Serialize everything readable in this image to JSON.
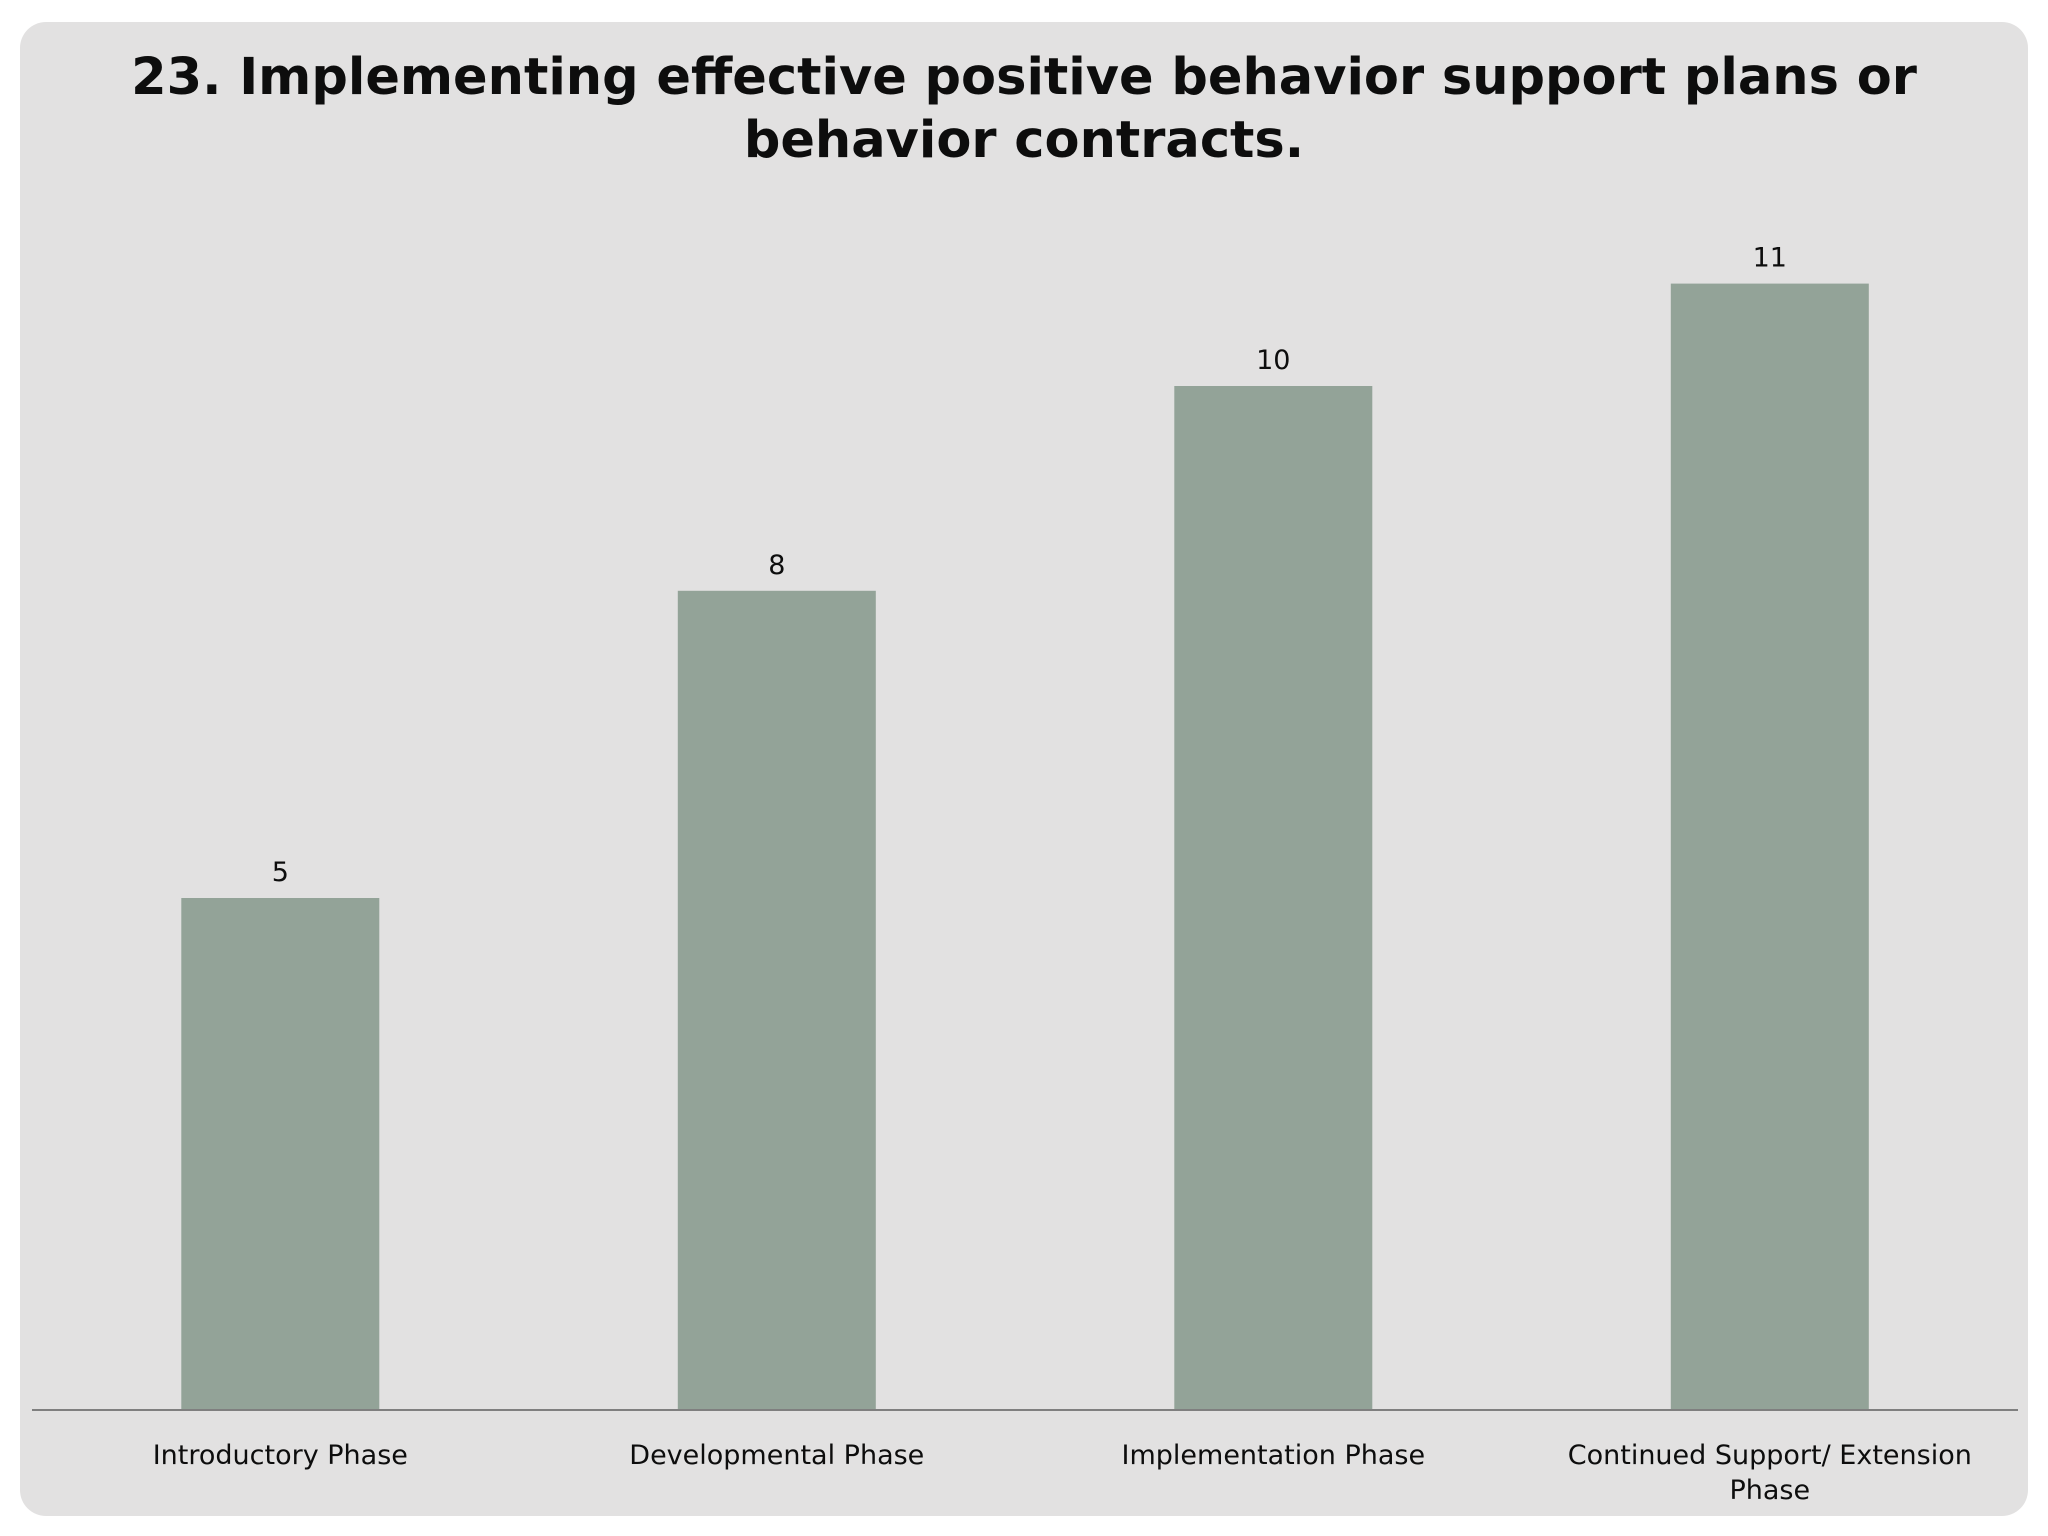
{
  "chart_data": {
    "type": "bar",
    "title_lines": [
      "23. Implementing effective positive behavior support plans or",
      "behavior contracts."
    ],
    "categories": [
      [
        "Introductory Phase"
      ],
      [
        "Developmental Phase"
      ],
      [
        "Implementation Phase"
      ],
      [
        "Continued Support/ Extension",
        "Phase"
      ]
    ],
    "values": [
      5,
      8,
      10,
      11
    ],
    "data_labels": [
      "5",
      "8",
      "10",
      "11"
    ],
    "xlabel": "",
    "ylabel": "",
    "ylim": [
      0,
      11
    ],
    "grid": false,
    "legend": "none",
    "colors": {
      "bar": "#93a398",
      "background": "#e2e1e1",
      "axis": "#7f7f7f",
      "text": "#0d0d0d"
    }
  }
}
